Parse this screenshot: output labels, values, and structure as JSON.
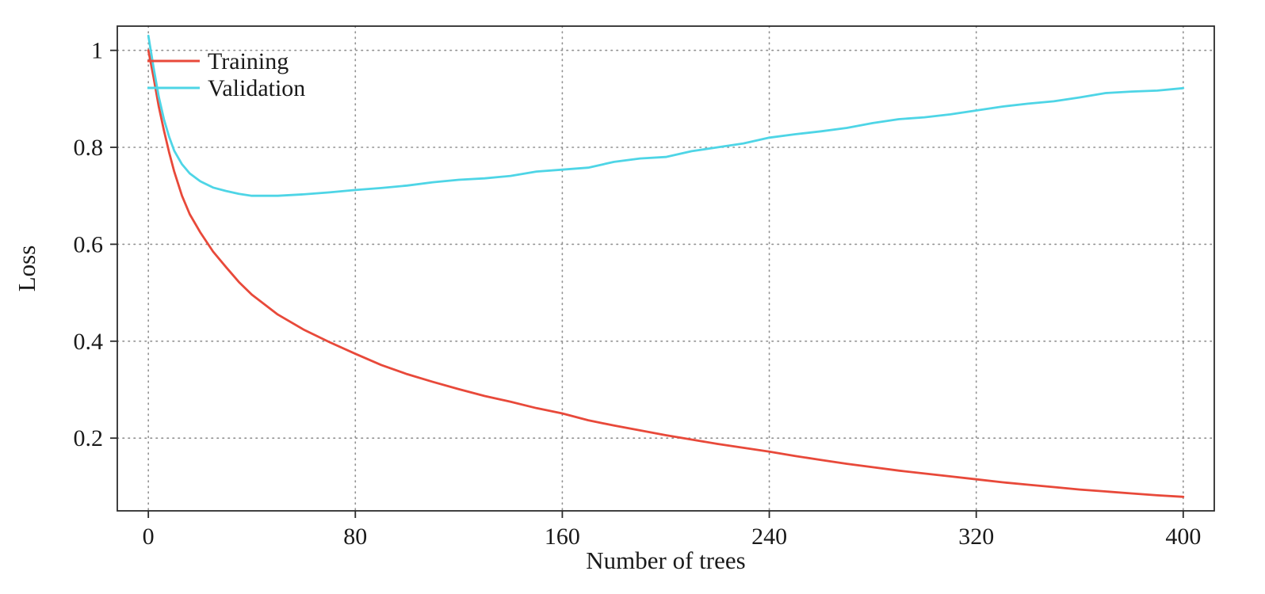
{
  "chart_data": {
    "type": "line",
    "title": "",
    "xlabel": "Number of trees",
    "ylabel": "Loss",
    "xlim": [
      -12,
      412
    ],
    "ylim": [
      0.05,
      1.05
    ],
    "x_ticks": [
      0,
      80,
      160,
      240,
      320,
      400
    ],
    "x_tick_labels": [
      "0",
      "80",
      "160",
      "240",
      "320",
      "400"
    ],
    "y_ticks": [
      0.2,
      0.4,
      0.6,
      0.8,
      1
    ],
    "y_tick_labels": [
      "0.2",
      "0.4",
      "0.6",
      "0.8",
      "1"
    ],
    "grid": "dotted",
    "grid_color": "#909090",
    "frame_color": "#2b2b2b",
    "legend_position": "top-left",
    "x": [
      0,
      2,
      4,
      6,
      8,
      10,
      13,
      16,
      20,
      25,
      30,
      35,
      40,
      50,
      60,
      70,
      80,
      90,
      100,
      110,
      120,
      130,
      140,
      150,
      160,
      170,
      180,
      190,
      200,
      210,
      220,
      230,
      240,
      250,
      260,
      270,
      280,
      290,
      300,
      310,
      320,
      330,
      340,
      350,
      360,
      370,
      380,
      390,
      400
    ],
    "series": [
      {
        "name": "Training",
        "color": "#e8493a",
        "values": [
          1.0,
          0.945,
          0.885,
          0.835,
          0.79,
          0.75,
          0.7,
          0.662,
          0.625,
          0.585,
          0.553,
          0.522,
          0.496,
          0.455,
          0.424,
          0.398,
          0.374,
          0.351,
          0.332,
          0.316,
          0.301,
          0.287,
          0.275,
          0.262,
          0.251,
          0.237,
          0.226,
          0.216,
          0.206,
          0.197,
          0.188,
          0.18,
          0.172,
          0.163,
          0.155,
          0.147,
          0.14,
          0.133,
          0.127,
          0.121,
          0.115,
          0.109,
          0.104,
          0.099,
          0.094,
          0.09,
          0.086,
          0.082,
          0.079
        ]
      },
      {
        "name": "Validation",
        "color": "#4ed5e6",
        "values": [
          1.03,
          0.965,
          0.905,
          0.858,
          0.822,
          0.793,
          0.765,
          0.746,
          0.73,
          0.717,
          0.71,
          0.704,
          0.7,
          0.7,
          0.703,
          0.707,
          0.712,
          0.716,
          0.721,
          0.728,
          0.733,
          0.736,
          0.741,
          0.75,
          0.754,
          0.758,
          0.77,
          0.777,
          0.78,
          0.792,
          0.8,
          0.808,
          0.82,
          0.827,
          0.833,
          0.84,
          0.85,
          0.858,
          0.862,
          0.868,
          0.876,
          0.884,
          0.89,
          0.895,
          0.903,
          0.912,
          0.915,
          0.917,
          0.922
        ]
      }
    ]
  }
}
